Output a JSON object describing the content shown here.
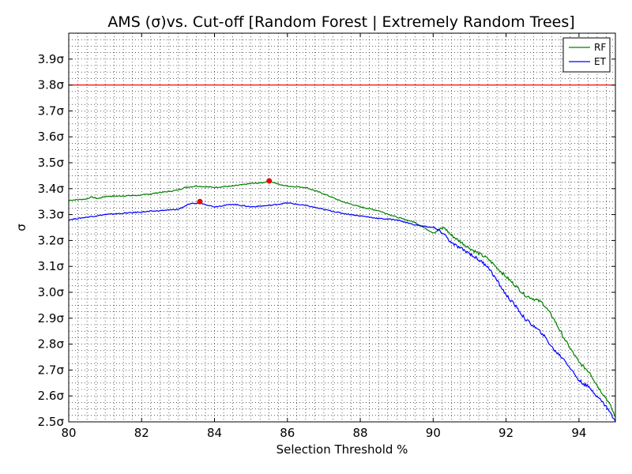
{
  "chart_data": {
    "type": "line",
    "title": "AMS (σ)vs. Cut-off [Random Forest | Extremely Random Trees]",
    "xlabel": "Selection Threshold %",
    "ylabel": "σ",
    "xlim": [
      80,
      95
    ],
    "ylim": [
      2.5,
      4.0
    ],
    "x_ticks": [
      80,
      82,
      84,
      86,
      88,
      90,
      92,
      94
    ],
    "x_tick_labels": [
      "80",
      "82",
      "84",
      "86",
      "88",
      "90",
      "92",
      "94"
    ],
    "y_ticks": [
      2.5,
      2.6,
      2.7,
      2.8,
      2.9,
      3.0,
      3.1,
      3.2,
      3.3,
      3.4,
      3.5,
      3.6,
      3.7,
      3.8,
      3.9
    ],
    "y_tick_labels": [
      "2.5σ",
      "2.6σ",
      "2.7σ",
      "2.8σ",
      "2.9σ",
      "3.0σ",
      "3.1σ",
      "3.2σ",
      "3.3σ",
      "3.4σ",
      "3.5σ",
      "3.6σ",
      "3.7σ",
      "3.8σ",
      "3.9σ"
    ],
    "grid": true,
    "legend_position": "top-right",
    "reference_line": {
      "y": 3.8,
      "color": "#ff0000"
    },
    "series": [
      {
        "name": "RF",
        "color": "#008000",
        "x": [
          80.0,
          80.5,
          80.6,
          80.8,
          81.0,
          81.5,
          82.0,
          82.5,
          82.8,
          83.0,
          83.2,
          83.5,
          84.0,
          84.5,
          85.0,
          85.3,
          85.5,
          85.8,
          86.0,
          86.5,
          87.0,
          87.5,
          88.0,
          88.5,
          89.0,
          89.5,
          89.8,
          90.0,
          90.3,
          90.5,
          91.0,
          91.5,
          92.0,
          92.3,
          92.5,
          93.0,
          93.3,
          93.6,
          94.0,
          94.3,
          94.5,
          94.8,
          95.0
        ],
        "y": [
          3.355,
          3.36,
          3.368,
          3.362,
          3.37,
          3.372,
          3.375,
          3.385,
          3.39,
          3.395,
          3.405,
          3.41,
          3.405,
          3.41,
          3.42,
          3.422,
          3.43,
          3.415,
          3.41,
          3.405,
          3.38,
          3.35,
          3.33,
          3.315,
          3.29,
          3.27,
          3.245,
          3.23,
          3.25,
          3.22,
          3.17,
          3.13,
          3.06,
          3.02,
          2.99,
          2.96,
          2.9,
          2.82,
          2.73,
          2.69,
          2.64,
          2.58,
          2.52
        ]
      },
      {
        "name": "ET",
        "color": "#0000ff",
        "x": [
          80.0,
          80.5,
          81.0,
          81.5,
          82.0,
          82.5,
          83.0,
          83.3,
          83.6,
          84.0,
          84.5,
          85.0,
          85.5,
          86.0,
          86.5,
          87.0,
          87.5,
          88.0,
          88.5,
          89.0,
          89.5,
          90.0,
          90.3,
          90.5,
          91.0,
          91.5,
          92.0,
          92.3,
          92.5,
          93.0,
          93.3,
          93.6,
          94.0,
          94.3,
          94.5,
          94.8,
          95.0
        ],
        "y": [
          3.28,
          3.29,
          3.3,
          3.305,
          3.31,
          3.315,
          3.32,
          3.34,
          3.345,
          3.33,
          3.34,
          3.33,
          3.335,
          3.345,
          3.335,
          3.32,
          3.305,
          3.295,
          3.285,
          3.28,
          3.26,
          3.25,
          3.225,
          3.19,
          3.15,
          3.1,
          2.99,
          2.94,
          2.9,
          2.84,
          2.78,
          2.74,
          2.66,
          2.63,
          2.6,
          2.55,
          2.5
        ]
      }
    ],
    "highlight_points": [
      {
        "series": "RF",
        "x": 85.5,
        "y": 3.43,
        "color": "#ff0000"
      },
      {
        "series": "ET",
        "x": 83.6,
        "y": 3.35,
        "color": "#ff0000"
      }
    ]
  }
}
